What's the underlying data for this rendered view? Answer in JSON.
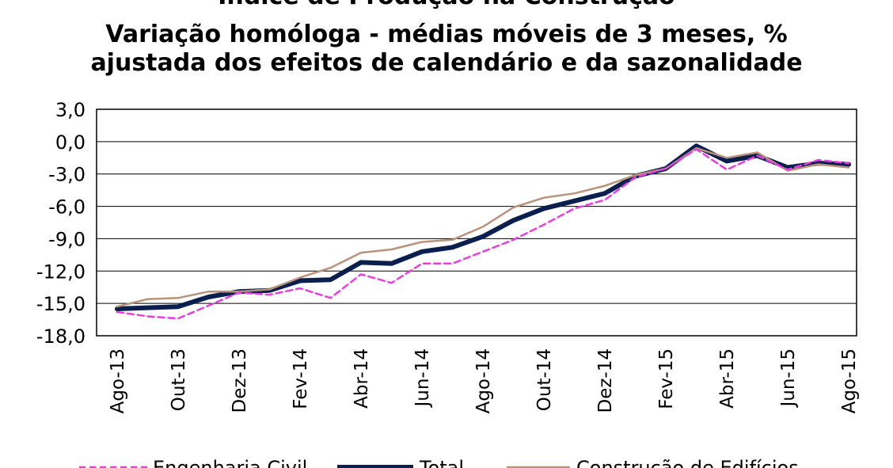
{
  "chart_data": {
    "type": "line",
    "title": "Índice de Produção na Construção",
    "subtitle": [
      "Variação homóloga - médias móveis de 3 meses, %",
      "ajustada dos efeitos de calendário e da sazonalidade"
    ],
    "xlabel": "",
    "ylabel": "",
    "ylim": [
      -18,
      3
    ],
    "yticks": [
      "3,0",
      "0,0",
      "-3,0",
      "-6,0",
      "-9,0",
      "-12,0",
      "-15,0",
      "-18,0"
    ],
    "ytick_values": [
      3,
      0,
      -3,
      -6,
      -9,
      -12,
      -15,
      -18
    ],
    "grid": true,
    "legend_position": "bottom",
    "categories": [
      "Ago-13",
      "Set-13",
      "Out-13",
      "Nov-13",
      "Dez-13",
      "Jan-14",
      "Fev-14",
      "Mar-14",
      "Abr-14",
      "Mai-14",
      "Jun-14",
      "Jul-14",
      "Ago-14",
      "Set-14",
      "Out-14",
      "Nov-14",
      "Dez-14",
      "Jan-15",
      "Fev-15",
      "Mar-15",
      "Abr-15",
      "Mai-15",
      "Jun-15",
      "Jul-15",
      "Ago-15"
    ],
    "x_tick_labels": [
      "Ago-13",
      "",
      "Out-13",
      "",
      "Dez-13",
      "",
      "Fev-14",
      "",
      "Abr-14",
      "",
      "Jun-14",
      "",
      "Ago-14",
      "",
      "Out-14",
      "",
      "Dez-14",
      "",
      "Fev-15",
      "",
      "Abr-15",
      "",
      "Jun-15",
      "",
      "Ago-15"
    ],
    "series": [
      {
        "name": "Engenharia Civil",
        "color": "#e83ee0",
        "style": "dashed",
        "values": [
          -15.8,
          -16.2,
          -16.4,
          -15.2,
          -14.0,
          -14.2,
          -13.6,
          -14.5,
          -12.3,
          -13.1,
          -11.3,
          -11.3,
          -10.2,
          -9.1,
          -7.7,
          -6.2,
          -5.4,
          -3.3,
          -2.5,
          -0.7,
          -2.6,
          -1.3,
          -2.6,
          -1.7,
          -2.0
        ]
      },
      {
        "name": "Total",
        "color": "#0b1f4f",
        "style": "solid-thick",
        "values": [
          -15.5,
          -15.4,
          -15.3,
          -14.4,
          -13.9,
          -13.8,
          -12.9,
          -12.8,
          -11.2,
          -11.3,
          -10.2,
          -9.8,
          -8.8,
          -7.3,
          -6.2,
          -5.5,
          -4.8,
          -3.2,
          -2.5,
          -0.4,
          -1.8,
          -1.3,
          -2.4,
          -2.0,
          -2.1
        ]
      },
      {
        "name": "Construção de Edifícios",
        "color": "#b8927a",
        "style": "solid",
        "values": [
          -15.3,
          -14.6,
          -14.5,
          -13.9,
          -13.9,
          -13.7,
          -12.6,
          -11.7,
          -10.3,
          -10.0,
          -9.3,
          -9.1,
          -7.9,
          -6.1,
          -5.2,
          -4.8,
          -4.1,
          -3.1,
          -2.5,
          -0.6,
          -1.5,
          -1.0,
          -2.7,
          -2.1,
          -2.4
        ]
      }
    ]
  }
}
